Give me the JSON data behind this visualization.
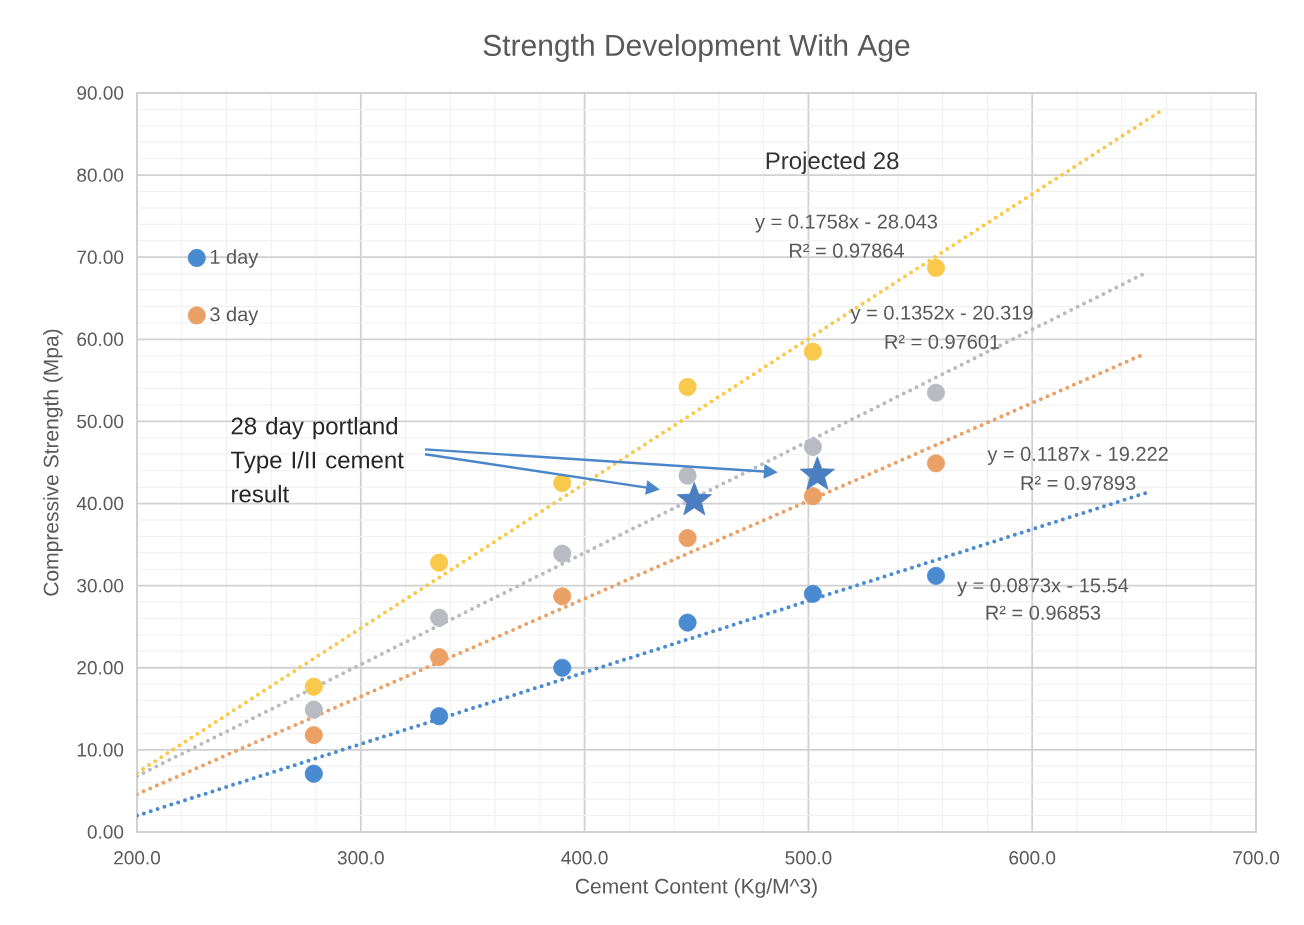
{
  "chart_data": {
    "type": "scatter",
    "title": "Strength Development With Age",
    "xlabel": "Cement Content (Kg/M^3)",
    "ylabel": "Compressive Strength (Mpa)",
    "xlim": [
      200,
      700
    ],
    "ylim": [
      0,
      90
    ],
    "xticks": [
      {
        "value": 200,
        "label": "200.0"
      },
      {
        "value": 300,
        "label": "300.0"
      },
      {
        "value": 400,
        "label": "400.0"
      },
      {
        "value": 500,
        "label": "500.0"
      },
      {
        "value": 600,
        "label": "600.0"
      },
      {
        "value": 700,
        "label": "700.0"
      }
    ],
    "yticks": [
      {
        "value": 0,
        "label": "0.00"
      },
      {
        "value": 10,
        "label": "10.00"
      },
      {
        "value": 20,
        "label": "20.00"
      },
      {
        "value": 30,
        "label": "30.00"
      },
      {
        "value": 40,
        "label": "40.00"
      },
      {
        "value": 50,
        "label": "50.00"
      },
      {
        "value": 60,
        "label": "60.00"
      },
      {
        "value": 70,
        "label": "70.00"
      },
      {
        "value": 80,
        "label": "80.00"
      },
      {
        "value": 90,
        "label": "90.00"
      }
    ],
    "grid": true,
    "legend": "top left",
    "series": [
      {
        "type": "line",
        "color": "#4a8ad0",
        "line_style": "dotted",
        "x": [
          200,
          652
        ],
        "values": [
          2.0,
          41.4
        ]
      },
      {
        "type": "line",
        "color": "#eba066",
        "line_style": "dotted",
        "x": [
          200,
          650
        ],
        "values": [
          4.6,
          58.2
        ]
      },
      {
        "type": "line",
        "color": "#b8bcc2",
        "line_style": "dotted",
        "x": [
          200,
          650
        ],
        "values": [
          6.8,
          68.0
        ]
      },
      {
        "type": "line",
        "color": "#f8c94a",
        "line_style": "dotted",
        "x": [
          200,
          658
        ],
        "values": [
          7.2,
          87.9
        ]
      },
      {
        "name": "1 day",
        "color": "#4a8ad0",
        "marker": "circle",
        "x": [
          279,
          335,
          390,
          446,
          502,
          557
        ],
        "values": [
          7.1,
          14.1,
          20.0,
          25.5,
          29.0,
          31.2
        ]
      },
      {
        "name": "3 day",
        "color": "#eba066",
        "marker": "circle",
        "x": [
          279,
          335,
          390,
          446,
          502,
          557
        ],
        "values": [
          11.8,
          21.3,
          28.7,
          35.8,
          40.9,
          44.9
        ]
      },
      {
        "color": "#b8bcc2",
        "marker": "circle",
        "x": [
          279,
          335,
          390,
          446,
          502,
          557
        ],
        "values": [
          14.9,
          26.1,
          33.9,
          43.4,
          46.9,
          53.5
        ]
      },
      {
        "color": "#f8c94a",
        "marker": "circle",
        "x": [
          279,
          335,
          390,
          446,
          502,
          557
        ],
        "values": [
          17.7,
          32.8,
          42.5,
          54.2,
          58.5,
          68.7
        ]
      },
      {
        "color": "#4a7ec0",
        "marker": "star",
        "x": [
          449,
          504
        ],
        "values": [
          40.4,
          43.5
        ]
      }
    ],
    "annotations": [
      "Projected 28",
      "y = 0.1758x - 28.043",
      "R² = 0.97864",
      "y = 0.1352x - 20.319",
      "R² = 0.97601",
      "y = 0.1187x - 19.222",
      "R² = 0.97893",
      "y = 0.0873x - 15.54",
      "R² = 0.96853",
      "28 day portland Type I/II cement result"
    ]
  }
}
